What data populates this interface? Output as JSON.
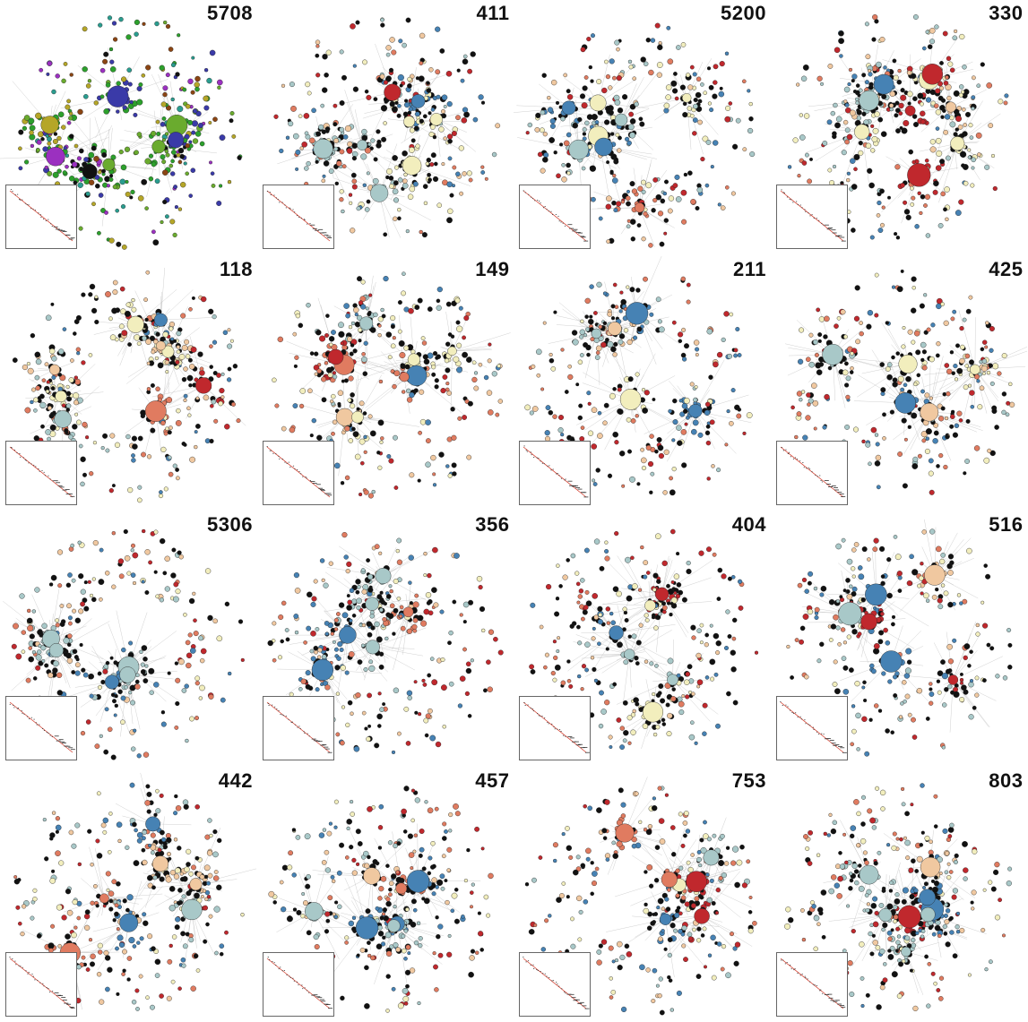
{
  "figure": {
    "panels": [
      {
        "label": "5708",
        "palette": "categorical"
      },
      {
        "label": "411",
        "palette": "sequential"
      },
      {
        "label": "5200",
        "palette": "sequential"
      },
      {
        "label": "330",
        "palette": "sequential"
      },
      {
        "label": "118",
        "palette": "sequential"
      },
      {
        "label": "149",
        "palette": "sequential"
      },
      {
        "label": "211",
        "palette": "sequential"
      },
      {
        "label": "425",
        "palette": "sequential"
      },
      {
        "label": "5306",
        "palette": "sequential"
      },
      {
        "label": "356",
        "palette": "sequential"
      },
      {
        "label": "404",
        "palette": "sequential"
      },
      {
        "label": "516",
        "palette": "sequential"
      },
      {
        "label": "442",
        "palette": "sequential"
      },
      {
        "label": "457",
        "palette": "sequential"
      },
      {
        "label": "753",
        "palette": "sequential"
      },
      {
        "label": "803",
        "palette": "sequential"
      }
    ],
    "colors": {
      "categorical": [
        "#2ca02c",
        "#8b4513",
        "#9b30c0",
        "#2a9d8f",
        "#b5a628",
        "#3a3aa8",
        "#6aab2e",
        "#111111"
      ],
      "sequential": [
        "#111111",
        "#111111",
        "#c0282d",
        "#e07b60",
        "#f0c8a0",
        "#f2eebd",
        "#a8c8c8",
        "#4682b4"
      ],
      "edge": "#bdbdbd",
      "inset_line": "#d44030",
      "inset_points": "#333333"
    }
  }
}
